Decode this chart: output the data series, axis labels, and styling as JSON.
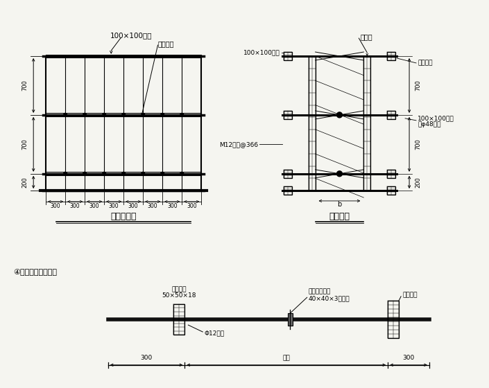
{
  "bg_color": "#f5f5f0",
  "line_color": "#000000",
  "title1": "墙模立面图",
  "title2": "墙剖面图",
  "label_top1": "100×100木枋",
  "label_top2": "拉紧扣件",
  "label_right1": "胶合板",
  "label_right2": "100×100木枋",
  "label_right3": "拉紧扣件",
  "label_right4": "M12螺栓@366",
  "label_right5": "100×100木枋",
  "label_right6": "及φ48钢管",
  "dim_200": "200",
  "dim_700a": "700",
  "dim_700b": "700",
  "dim_300": "300",
  "bottom_label": "④止水螺栓示意图：",
  "label_bolt1": "50×50×18",
  "label_bolt2": "木板垫片",
  "label_bolt3": "40×40×3止水片",
  "label_bolt4": "（双面满焊）",
  "label_bolt5": "墙体模板",
  "label_bolt6": "Φ12螺栓",
  "dim_bolt_300a": "300",
  "dim_bolt_bi": "壁厚",
  "dim_bolt_300b": "300",
  "label_b": "b"
}
